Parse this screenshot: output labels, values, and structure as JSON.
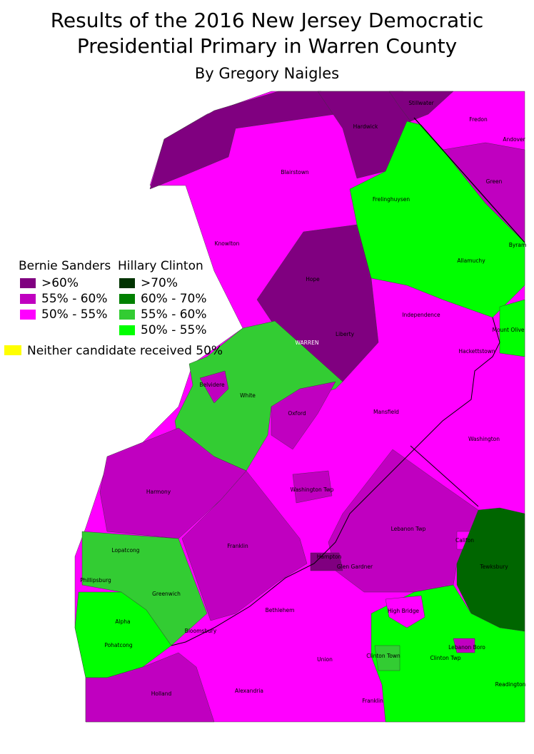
{
  "header": {
    "title_lines": [
      "Results of the 2016 New Jersey Democratic",
      "Presidential Primary in Warren County"
    ],
    "subtitle": "By Gregory Naigles"
  },
  "legend": {
    "groups": [
      {
        "title": "Bernie Sanders",
        "items": [
          {
            "label": ">60%",
            "color": "#800080"
          },
          {
            "label": "55% - 60%",
            "color": "#c000c0"
          },
          {
            "label": "50% - 55%",
            "color": "#ff00ff"
          }
        ]
      },
      {
        "title": "Hillary Clinton",
        "items": [
          {
            "label": ">70%",
            "color": "#003300"
          },
          {
            "label": "60% - 70%",
            "color": "#008000"
          },
          {
            "label": "55% - 60%",
            "color": "#33cc33"
          },
          {
            "label": "50% - 55%",
            "color": "#00ff00"
          }
        ]
      }
    ],
    "neither": {
      "label": "Neither candidate received 50%",
      "color": "#ffff00"
    }
  },
  "map": {
    "labels": [
      "Stillwater",
      "Fredon",
      "Andover",
      "Hardwick",
      "Blairstown",
      "Green",
      "Frelinghuysen",
      "Byram",
      "Knowlton",
      "Allamuchy",
      "Hope",
      "Independence",
      "Mount Olive",
      "WARREN",
      "Liberty",
      "Hackettstown",
      "Belvidere",
      "White",
      "Oxford",
      "Mansfield",
      "Washington",
      "Harmony",
      "Washington Twp",
      "Lebanon Twp",
      "Califon",
      "Lopatcong",
      "Franklin",
      "Hampton",
      "Glen Gardner",
      "Phillipsburg",
      "Greenwich",
      "Tewksbury",
      "Bethlehem",
      "High Bridge",
      "Alpha",
      "Bloomsbury",
      "Pohatcong",
      "Lebanon Boro",
      "Clinton Town",
      "Union",
      "Clinton Twp",
      "Readington",
      "Holland",
      "Alexandria",
      "Franklin"
    ]
  }
}
